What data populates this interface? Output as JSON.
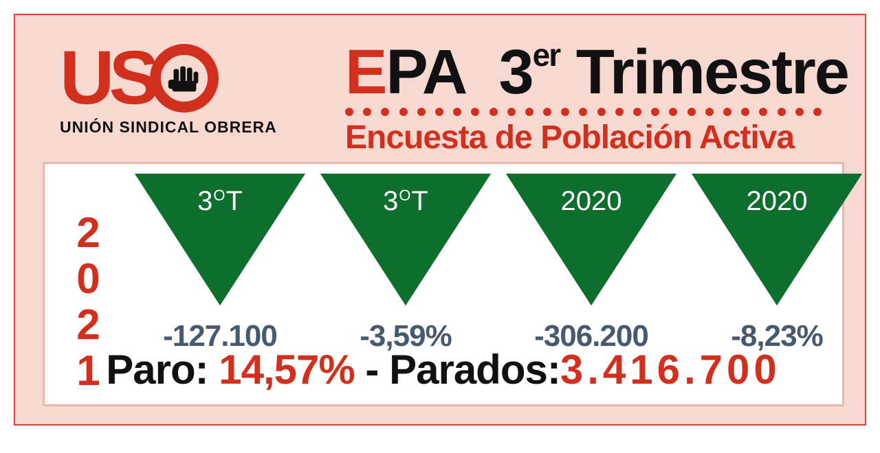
{
  "logo": {
    "letters_us": "US",
    "subtitle": "UNIÓN SINDICAL OBRERA"
  },
  "title": {
    "ep_e": "E",
    "ep_pa": "PA",
    "three": "3",
    "er": "er",
    "trimestre": " Trimestre",
    "subtitle": "Encuesta de Población Activa",
    "dot_count": 27,
    "dot_color": "#d1301f"
  },
  "year": "2021",
  "triangles": [
    {
      "label_main": "3",
      "label_sup": "O",
      "label_suffix": "T",
      "value": "-127.100"
    },
    {
      "label_main": "3",
      "label_sup": "O",
      "label_suffix": "T",
      "value": "-3,59%"
    },
    {
      "label_main": "2020",
      "label_sup": "",
      "label_suffix": "",
      "value": "-306.200"
    },
    {
      "label_main": "2020",
      "label_sup": "",
      "label_suffix": "",
      "value": "-8,23%"
    }
  ],
  "triangle_style": {
    "fill_color": "#1d8c3e",
    "border_color": "#0e6e2e",
    "label_color": "#ffffff",
    "value_color": "#46596f",
    "label_fontsize": 40,
    "value_fontsize": 44
  },
  "footer": {
    "paro_label": "Paro: ",
    "paro_value": "14,57%",
    "separator": " - ",
    "parados_label": "Parados:",
    "parados_value": "3.416.700"
  },
  "colors": {
    "background": "#f8d9d1",
    "outer_border": "#d64532",
    "content_bg": "#ffffff",
    "content_border": "#e6b7aa",
    "brand_red": "#d1301f",
    "text_dark": "#111"
  }
}
